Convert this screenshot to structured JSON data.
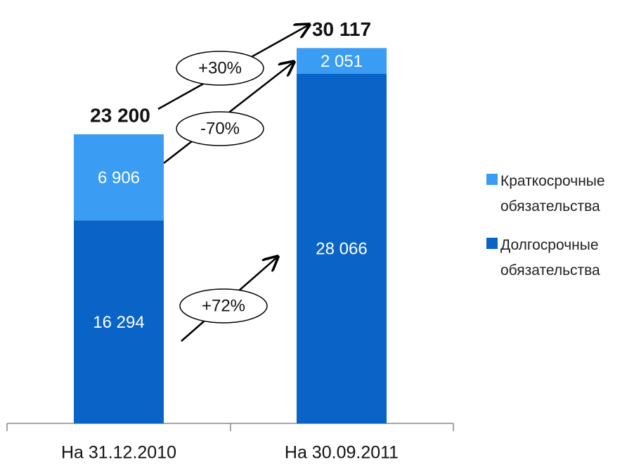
{
  "chart_data": {
    "type": "stacked_bar",
    "categories": [
      "На 31.12.2010",
      "На 30.09.2011"
    ],
    "series": [
      {
        "name": "Долгосрочные обязательства",
        "color": "#0a64c8",
        "values": [
          16294,
          28066
        ],
        "value_labels": [
          "16 294",
          "28 066"
        ]
      },
      {
        "name": "Краткосрочные обязательства",
        "color": "#3a9cf2",
        "values": [
          6906,
          2051
        ],
        "value_labels": [
          "6 906",
          "2 051"
        ]
      }
    ],
    "totals": [
      23200,
      30117
    ],
    "total_labels": [
      "23 200",
      "30 117"
    ],
    "annotations": [
      "+30%",
      "-70%",
      "+72%"
    ],
    "ylim": [
      0,
      32000
    ],
    "legend": "right"
  }
}
